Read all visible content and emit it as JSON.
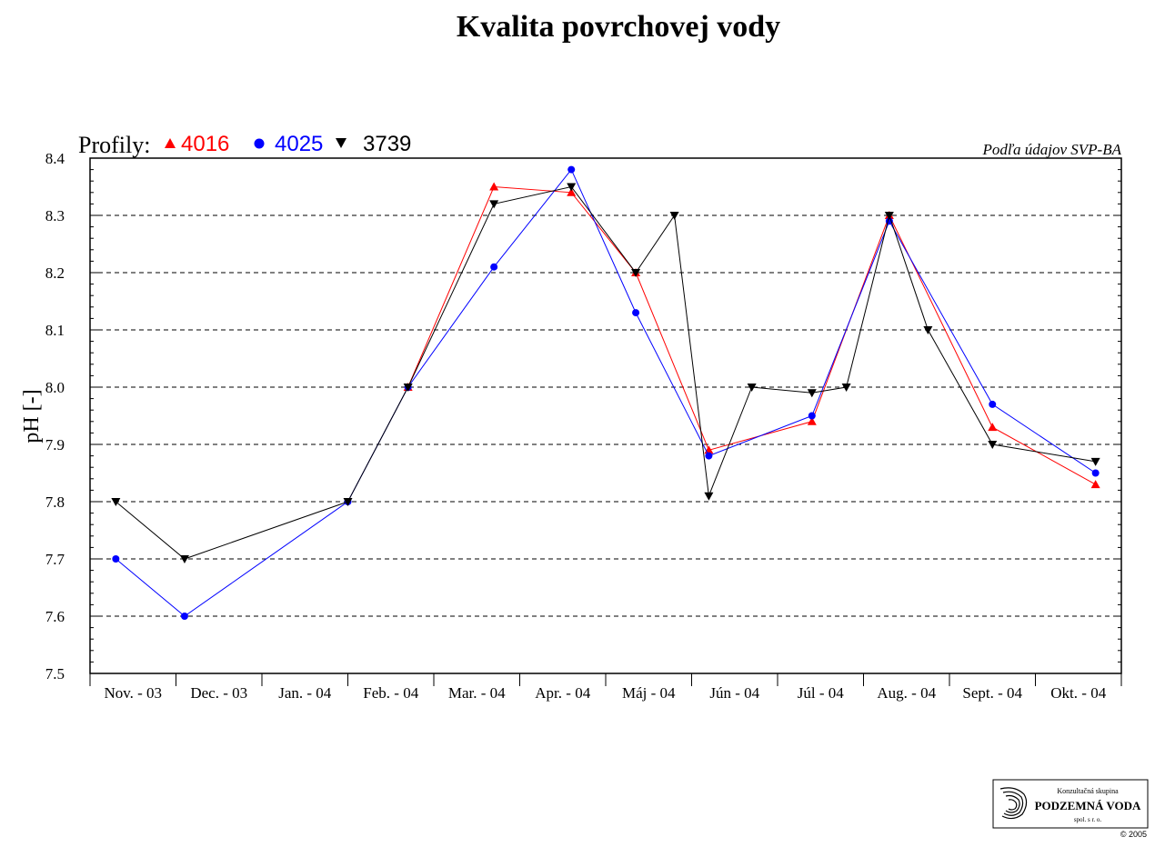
{
  "chart_data": {
    "type": "line",
    "title": "Kvalita povrchovej vody",
    "source_note": "Podľa údajov SVP-BA",
    "legend_label": "Profily:",
    "ylabel": "pH [-]",
    "xlabel": "",
    "ylim": [
      7.5,
      8.4
    ],
    "yticks": [
      "7.5",
      "7.6",
      "7.7",
      "7.8",
      "7.9",
      "8.0",
      "8.1",
      "8.2",
      "8.3",
      "8.4"
    ],
    "grid": "horizontal dashed",
    "legend_placement": "top-left",
    "categories": [
      "Nov. - 03",
      "Dec. - 03",
      "Jan. - 04",
      "Feb. - 04",
      "Mar. - 04",
      "Apr. - 04",
      "Máj - 04",
      "Jún - 04",
      "Júl - 04",
      "Aug. - 04",
      "Sept. - 04",
      "Okt. - 04"
    ],
    "series": [
      {
        "name": "4016",
        "color": "#ff0000",
        "marker": "triangle-up",
        "points": [
          {
            "x": 3.7,
            "y": 8.0
          },
          {
            "x": 4.7,
            "y": 8.35
          },
          {
            "x": 5.6,
            "y": 8.34
          },
          {
            "x": 6.35,
            "y": 8.2
          },
          {
            "x": 7.2,
            "y": 7.89
          },
          {
            "x": 8.4,
            "y": 7.94
          },
          {
            "x": 9.3,
            "y": 8.3
          },
          {
            "x": 10.5,
            "y": 7.93
          },
          {
            "x": 11.7,
            "y": 7.83
          }
        ]
      },
      {
        "name": "4025",
        "color": "#0000ff",
        "marker": "circle",
        "points": [
          {
            "x": 0.3,
            "y": 7.7
          },
          {
            "x": 1.1,
            "y": 7.6
          },
          {
            "x": 3.0,
            "y": 7.8
          },
          {
            "x": 3.7,
            "y": 8.0
          },
          {
            "x": 4.7,
            "y": 8.21
          },
          {
            "x": 5.6,
            "y": 8.38
          },
          {
            "x": 6.35,
            "y": 8.13
          },
          {
            "x": 7.2,
            "y": 7.88
          },
          {
            "x": 8.4,
            "y": 7.95
          },
          {
            "x": 9.3,
            "y": 8.29
          },
          {
            "x": 10.5,
            "y": 7.97
          },
          {
            "x": 11.7,
            "y": 7.85
          }
        ]
      },
      {
        "name": "3739",
        "color": "#000000",
        "marker": "triangle-down",
        "points": [
          {
            "x": 0.3,
            "y": 7.8
          },
          {
            "x": 1.1,
            "y": 7.7
          },
          {
            "x": 3.0,
            "y": 7.8
          },
          {
            "x": 3.7,
            "y": 8.0
          },
          {
            "x": 4.7,
            "y": 8.32
          },
          {
            "x": 5.6,
            "y": 8.35
          },
          {
            "x": 6.35,
            "y": 8.2
          },
          {
            "x": 6.8,
            "y": 8.3
          },
          {
            "x": 7.2,
            "y": 7.81
          },
          {
            "x": 7.7,
            "y": 8.0
          },
          {
            "x": 8.4,
            "y": 7.99
          },
          {
            "x": 8.8,
            "y": 8.0
          },
          {
            "x": 9.3,
            "y": 8.3
          },
          {
            "x": 9.75,
            "y": 8.1
          },
          {
            "x": 10.5,
            "y": 7.9
          },
          {
            "x": 11.7,
            "y": 7.87
          }
        ]
      }
    ]
  },
  "logo": {
    "top_text": "Konzultačná skupina",
    "name": "PODZEMNÁ VODA",
    "sub_text": "spol. s r. o.",
    "copyright": "© 2005"
  }
}
